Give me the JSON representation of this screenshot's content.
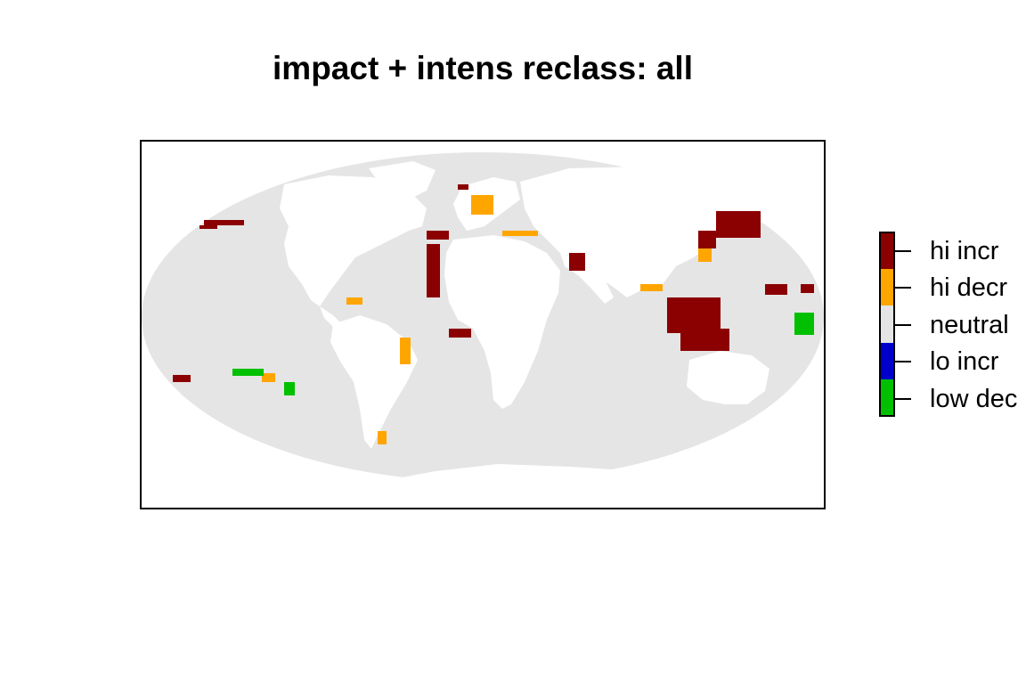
{
  "title": "impact + intens reclass: all",
  "colors": {
    "ocean": "#e5e5e5",
    "land": "#ffffff",
    "hi_incr": "#8b0000",
    "hi_decr": "#ffa500",
    "neutral": "#e5e5e5",
    "lo_incr": "#0000cd",
    "low_dec": "#00c000"
  },
  "legend": {
    "items": [
      {
        "label": "hi incr",
        "color": "#8b0000"
      },
      {
        "label": "hi decr",
        "color": "#ffa500"
      },
      {
        "label": "neutral",
        "color": "#e5e5e5"
      },
      {
        "label": "lo incr",
        "color": "#0000cd"
      },
      {
        "label": "low dec",
        "color": "#00c000"
      }
    ]
  }
}
